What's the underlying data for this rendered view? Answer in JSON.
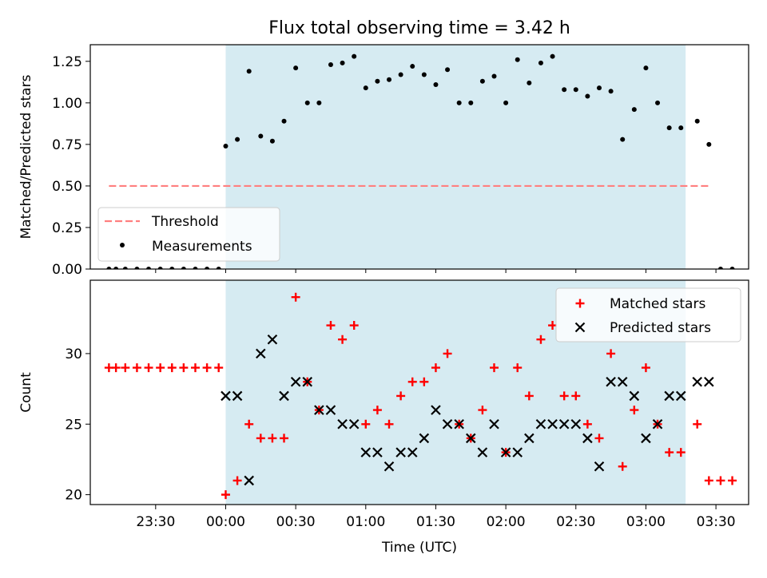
{
  "title": "Flux total observing time = 3.42 h",
  "colors": {
    "band": "#add8e6",
    "threshold": "#ff7f7f",
    "measurement": "#000000",
    "matched": "#ff0000",
    "predicted": "#000000"
  },
  "chart_data": [
    {
      "type": "scatter",
      "panel": "top",
      "ylabel": "Matched/Predicted stars",
      "ylim": [
        0,
        1.35
      ],
      "xlim": [
        -48,
        234
      ],
      "yticks": [
        0.0,
        0.25,
        0.5,
        0.75,
        1.0,
        1.25
      ],
      "ytick_labels": [
        "0.00",
        "0.25",
        "0.50",
        "0.75",
        "1.00",
        "1.25"
      ],
      "shaded_region": [
        10,
        207
      ],
      "threshold": {
        "name": "Threshold",
        "value": 0.5,
        "x": [
          -40,
          217
        ]
      },
      "legend_position": "lower-left",
      "series": [
        {
          "name": "Measurements",
          "x": [
            -40,
            -37,
            -33,
            -28,
            -23,
            -18,
            -13,
            -8,
            -3,
            2,
            7,
            10,
            15,
            20,
            25,
            30,
            35,
            40,
            45,
            50,
            55,
            60,
            65,
            70,
            75,
            80,
            85,
            90,
            95,
            100,
            105,
            110,
            115,
            120,
            125,
            130,
            135,
            140,
            145,
            150,
            155,
            160,
            165,
            170,
            175,
            180,
            185,
            190,
            195,
            200,
            205,
            212,
            217
          ],
          "y": [
            0,
            0,
            0,
            0,
            0,
            0,
            0,
            0,
            0,
            0,
            0,
            0.74,
            0.78,
            1.19,
            0.8,
            0.77,
            0.89,
            1.21,
            1.0,
            1.0,
            1.23,
            1.24,
            1.28,
            1.09,
            1.13,
            1.14,
            1.17,
            1.22,
            1.17,
            1.11,
            1.2,
            1.0,
            1.0,
            1.13,
            1.16,
            1.0,
            1.26,
            1.12,
            1.24,
            1.28,
            1.08,
            1.08,
            1.04,
            1.09,
            1.07,
            0.78,
            0.96,
            1.21,
            1.0,
            0.85,
            0.85,
            0.89,
            0.75
          ],
          "extra_x": [
            222,
            227
          ],
          "extra_y": [
            0,
            0
          ]
        }
      ]
    },
    {
      "type": "scatter",
      "panel": "bottom",
      "xlabel": "Time (UTC)",
      "ylabel": "Count",
      "ylim": [
        19.3,
        35.2
      ],
      "xlim": [
        -48,
        234
      ],
      "yticks": [
        20,
        25,
        30
      ],
      "ytick_labels": [
        "20",
        "25",
        "30"
      ],
      "xticks": [
        -20,
        10,
        40,
        70,
        100,
        130,
        160,
        190,
        220
      ],
      "xtick_labels": [
        "23:30",
        "00:00",
        "00:30",
        "01:00",
        "01:30",
        "02:00",
        "02:30",
        "03:00",
        "03:30"
      ],
      "shaded_region": [
        10,
        207
      ],
      "legend_position": "top-right",
      "series": [
        {
          "name": "Matched stars",
          "marker": "plus",
          "x": [
            -40,
            -37,
            -33,
            -28,
            -23,
            -18,
            -13,
            -8,
            -3,
            2,
            7,
            10,
            15,
            20,
            25,
            30,
            35,
            40,
            45,
            50,
            55,
            60,
            65,
            70,
            75,
            80,
            85,
            90,
            95,
            100,
            105,
            110,
            115,
            120,
            125,
            130,
            135,
            140,
            145,
            150,
            155,
            160,
            165,
            170,
            175,
            180,
            185,
            190,
            195,
            200,
            205,
            212,
            217,
            222,
            227
          ],
          "y": [
            29,
            29,
            29,
            29,
            29,
            29,
            29,
            29,
            29,
            29,
            29,
            20,
            21,
            25,
            24,
            24,
            24,
            34,
            28,
            26,
            32,
            31,
            32,
            25,
            26,
            25,
            27,
            28,
            28,
            29,
            30,
            25,
            24,
            26,
            29,
            23,
            29,
            27,
            31,
            32,
            27,
            27,
            25,
            24,
            30,
            22,
            26,
            29,
            25,
            23,
            23,
            25,
            21,
            21,
            21
          ]
        },
        {
          "name": "Predicted stars",
          "marker": "x",
          "x": [
            10,
            15,
            20,
            25,
            30,
            35,
            40,
            45,
            50,
            55,
            60,
            65,
            70,
            75,
            80,
            85,
            90,
            95,
            100,
            105,
            110,
            115,
            120,
            125,
            130,
            135,
            140,
            145,
            150,
            155,
            160,
            165,
            170,
            175,
            180,
            185,
            190,
            195,
            200,
            205,
            212,
            217
          ],
          "y": [
            27,
            27,
            21,
            30,
            31,
            27,
            28,
            28,
            26,
            26,
            25,
            25,
            23,
            23,
            22,
            23,
            23,
            24,
            26,
            25,
            25,
            24,
            23,
            25,
            23,
            23,
            24,
            25,
            25,
            25,
            25,
            24,
            22,
            28,
            28,
            27,
            24,
            25,
            27,
            27,
            28,
            28
          ]
        }
      ]
    }
  ]
}
